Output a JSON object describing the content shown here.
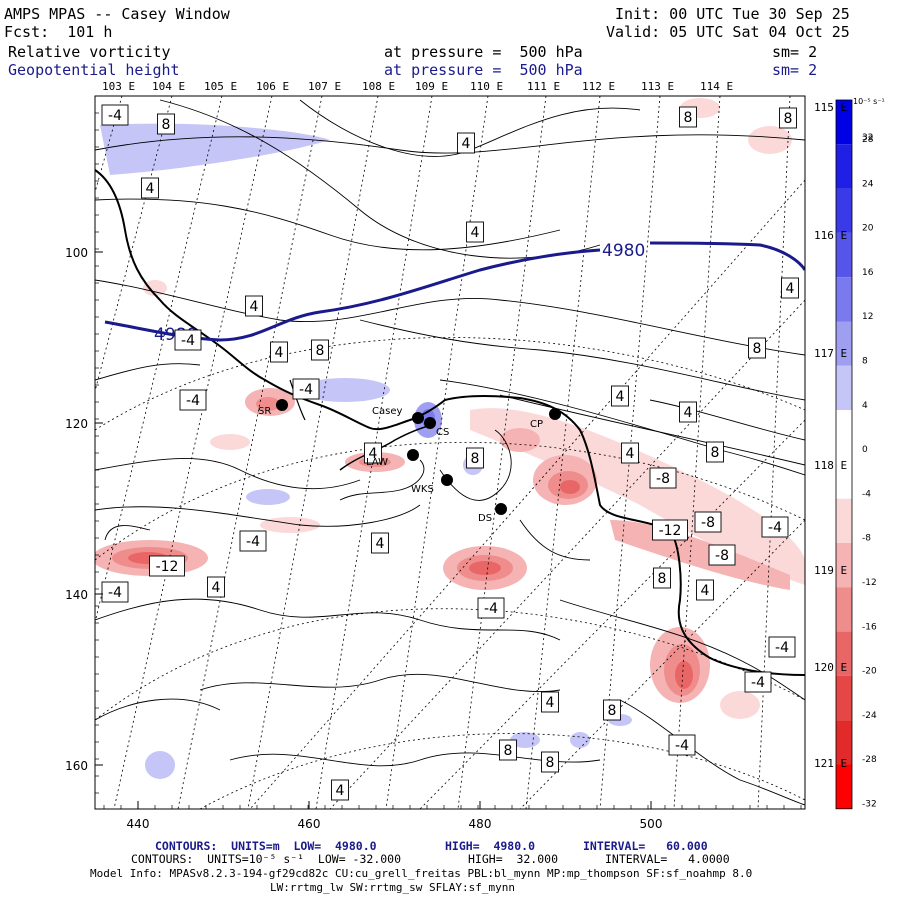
{
  "header": {
    "title": "AMPS MPAS -- Casey Window",
    "fcst": "Fcst:  101 h",
    "init": "Init: 00 UTC Tue 30 Sep 25",
    "valid": "Valid: 05 UTC Sat 04 Oct 25",
    "field1_name": "Relative vorticity",
    "field1_level": "at pressure =  500 hPa",
    "field1_sm": "sm= 2",
    "field2_name": "Geopotential height",
    "field2_level": "at pressure =  500 hPa",
    "field2_sm": "sm= 2"
  },
  "top_lon_labels": [
    "103 E",
    "104 E",
    "105 E",
    "106 E",
    "107 E",
    "108 E",
    "109 E",
    "110 E",
    "111 E",
    "112 E",
    "113 E",
    "114 E"
  ],
  "right_lon_labels": [
    "115 E",
    "116 E",
    "117 E",
    "118 E",
    "119 E",
    "120 E",
    "121 E"
  ],
  "left_axis_ticks": [
    "100",
    "120",
    "140",
    "160"
  ],
  "bottom_axis_ticks": [
    "440",
    "460",
    "480",
    "500"
  ],
  "colorbar": {
    "unit_label": "10⁻⁵ s⁻¹",
    "ticks": [
      "32",
      "28",
      "24",
      "20",
      "16",
      "12",
      "8",
      "4",
      "0",
      "-4",
      "-8",
      "-12",
      "-16",
      "-20",
      "-24",
      "-28",
      "-32"
    ],
    "colors": [
      "#0000e6",
      "#1f1fe6",
      "#3a3ae8",
      "#5555ea",
      "#7a7aee",
      "#9f9ff2",
      "#c5c5f7",
      "#ffffff",
      "#ffffff",
      "#fbd9d9",
      "#f5b3b3",
      "#ef8d8d",
      "#e96666",
      "#e54646",
      "#e22a2a",
      "#ff0000"
    ]
  },
  "stations": [
    "SR",
    "Casey",
    "CS",
    "LAW",
    "WKS",
    "DS",
    "CP"
  ],
  "height_contour_label": "4980",
  "vort_labels": [
    "4",
    "8",
    "-4",
    "-8",
    "-12"
  ],
  "footer": {
    "line1_part1": "CONTOURS:  UNITS=m  LOW=  4980.0",
    "line1_part2": "HIGH=  4980.0",
    "line1_part3": "INTERVAL=   60.000",
    "line2_part1": "CONTOURS:  UNITS=10⁻⁵ s⁻¹  LOW= -32.000",
    "line2_part2": "HIGH=  32.000",
    "line2_part3": "INTERVAL=   4.0000",
    "model_info": "Model Info: MPASv8.2.3-194-gf29cd82c CU:cu_grell_freitas PBL:bl_mynn MP:mp_thompson SF:sf_noahmp 8.0",
    "model_info2": "LW:rrtmg_lw SW:rrtmg_sw SFLAY:sf_mynn"
  }
}
